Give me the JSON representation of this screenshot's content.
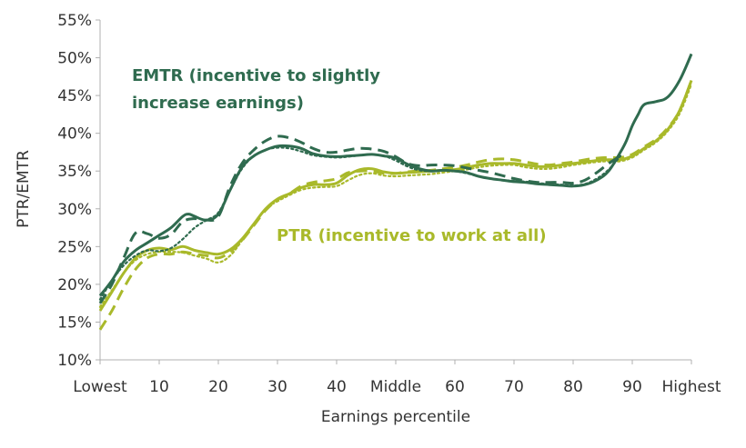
{
  "chart_data": {
    "type": "line",
    "title": "",
    "xlabel": "Earnings percentile",
    "ylabel": "PTR/EMTR",
    "xlim": [
      0,
      100
    ],
    "ylim": [
      10,
      55
    ],
    "x_ticks": [
      {
        "value": 0,
        "label": "Lowest"
      },
      {
        "value": 10,
        "label": "10"
      },
      {
        "value": 20,
        "label": "20"
      },
      {
        "value": 30,
        "label": "30"
      },
      {
        "value": 40,
        "label": "40"
      },
      {
        "value": 50,
        "label": "Middle"
      },
      {
        "value": 60,
        "label": "60"
      },
      {
        "value": 70,
        "label": "70"
      },
      {
        "value": 80,
        "label": "80"
      },
      {
        "value": 90,
        "label": "90"
      },
      {
        "value": 100,
        "label": "Highest"
      }
    ],
    "y_ticks": [
      {
        "value": 10,
        "label": "10%"
      },
      {
        "value": 15,
        "label": "15%"
      },
      {
        "value": 20,
        "label": "20%"
      },
      {
        "value": 25,
        "label": "25%"
      },
      {
        "value": 30,
        "label": "30%"
      },
      {
        "value": 35,
        "label": "35%"
      },
      {
        "value": 40,
        "label": "40%"
      },
      {
        "value": 45,
        "label": "45%"
      },
      {
        "value": 50,
        "label": "50%"
      },
      {
        "value": 55,
        "label": "55%"
      }
    ],
    "annotations": [
      {
        "text": "EMTR (incentive to slightly",
        "color": "#2f6b4f"
      },
      {
        "text": "increase earnings)",
        "color": "#2f6b4f"
      },
      {
        "text": "PTR (incentive to work at all)",
        "color": "#a9b92a"
      }
    ],
    "series": [
      {
        "name": "EMTR (solid)",
        "color": "#2f6b4f",
        "style": "solid",
        "x": [
          0,
          2,
          4,
          6,
          8,
          10,
          12,
          14,
          15,
          16,
          18,
          20,
          22,
          24,
          26,
          28,
          30,
          32,
          34,
          36,
          38,
          40,
          42,
          44,
          46,
          48,
          50,
          52,
          54,
          56,
          58,
          60,
          62,
          64,
          66,
          68,
          70,
          72,
          74,
          76,
          78,
          80,
          82,
          84,
          86,
          88,
          89,
          90,
          91,
          92,
          94,
          96,
          98,
          100
        ],
        "y": [
          18.5,
          20.5,
          23.0,
          24.5,
          25.5,
          26.5,
          27.5,
          29.0,
          29.3,
          29.0,
          28.5,
          29.3,
          32.5,
          35.5,
          37.0,
          37.8,
          38.3,
          38.3,
          38.0,
          37.3,
          37.0,
          36.9,
          37.0,
          37.1,
          37.2,
          37.0,
          36.7,
          35.9,
          35.3,
          35.0,
          35.1,
          35.0,
          34.8,
          34.3,
          34.0,
          33.8,
          33.6,
          33.5,
          33.3,
          33.2,
          33.1,
          33.0,
          33.2,
          33.8,
          35.0,
          37.5,
          39.0,
          41.0,
          42.5,
          43.8,
          44.2,
          44.8,
          47.0,
          50.5
        ]
      },
      {
        "name": "EMTR (dashed)",
        "color": "#2f6b4f",
        "style": "dashed",
        "x": [
          0,
          2,
          4,
          6,
          8,
          10,
          12,
          14,
          16,
          18,
          20,
          22,
          24,
          26,
          28,
          30,
          32,
          34,
          36,
          38,
          40,
          42,
          44,
          46,
          48,
          50,
          52,
          54,
          56,
          58,
          60,
          62,
          64,
          66,
          68,
          70,
          72,
          74,
          76,
          78,
          80,
          82,
          84,
          86,
          88
        ],
        "y": [
          17.5,
          20.0,
          23.5,
          26.8,
          26.7,
          26.1,
          26.6,
          28.3,
          28.7,
          28.5,
          29.0,
          33.0,
          36.0,
          37.8,
          39.0,
          39.6,
          39.4,
          38.8,
          38.0,
          37.5,
          37.5,
          37.8,
          38.0,
          37.9,
          37.6,
          36.9,
          36.0,
          35.7,
          35.8,
          35.8,
          35.7,
          35.4,
          35.1,
          34.8,
          34.4,
          34.0,
          33.7,
          33.5,
          33.5,
          33.5,
          33.4,
          33.8,
          34.8,
          36.0,
          37.0
        ]
      },
      {
        "name": "EMTR (dotted)",
        "color": "#2f6b4f",
        "style": "dotted",
        "x": [
          0,
          2,
          4,
          6,
          8,
          10,
          12,
          14,
          16,
          18,
          20,
          22,
          24,
          26,
          28,
          30,
          32,
          34,
          36,
          38,
          40,
          42,
          44,
          46,
          48,
          50,
          52,
          54,
          56,
          58,
          60,
          62,
          64,
          66,
          68,
          70,
          72,
          74,
          76,
          78,
          80,
          82,
          84,
          86,
          88
        ],
        "y": [
          18.0,
          20.5,
          22.5,
          23.8,
          24.5,
          24.4,
          24.8,
          26.0,
          27.5,
          28.5,
          29.5,
          32.5,
          35.3,
          37.0,
          37.8,
          38.1,
          38.0,
          37.6,
          37.1,
          36.9,
          36.8,
          36.9,
          37.1,
          37.2,
          37.0,
          36.4,
          35.6,
          35.1,
          35.0,
          35.1,
          35.0,
          34.7,
          34.3,
          34.0,
          33.8,
          33.7,
          33.6,
          33.4,
          33.3,
          33.2,
          33.1,
          33.3,
          34.0,
          35.2,
          37.0
        ]
      },
      {
        "name": "PTR (solid)",
        "color": "#a9b92a",
        "style": "solid",
        "x": [
          0,
          2,
          4,
          6,
          8,
          10,
          12,
          14,
          16,
          18,
          20,
          22,
          24,
          26,
          28,
          30,
          32,
          34,
          36,
          38,
          40,
          42,
          44,
          46,
          48,
          50,
          52,
          54,
          56,
          58,
          60,
          62,
          64,
          66,
          68,
          70,
          72,
          74,
          76,
          78,
          80,
          82,
          84,
          86,
          88,
          90,
          92,
          94,
          96,
          98,
          100
        ],
        "y": [
          16.5,
          19.0,
          21.5,
          23.5,
          24.5,
          24.8,
          24.6,
          25.0,
          24.5,
          24.2,
          24.0,
          24.6,
          26.0,
          28.0,
          30.0,
          31.3,
          32.0,
          32.8,
          33.2,
          33.2,
          33.4,
          34.5,
          35.2,
          35.3,
          34.9,
          34.7,
          34.8,
          34.9,
          35.0,
          35.1,
          35.2,
          35.5,
          35.8,
          36.0,
          36.0,
          36.0,
          35.8,
          35.6,
          35.6,
          35.8,
          36.0,
          36.2,
          36.4,
          36.5,
          36.5,
          37.0,
          38.0,
          39.0,
          40.5,
          43.0,
          47.0
        ]
      },
      {
        "name": "PTR (dashed)",
        "color": "#a9b92a",
        "style": "dashed",
        "x": [
          0,
          2,
          4,
          6,
          8,
          10,
          12,
          14,
          16,
          18,
          20,
          22,
          24,
          26,
          28,
          30,
          32,
          34,
          36,
          38,
          40,
          42,
          44,
          46,
          48,
          50,
          52,
          54,
          56,
          58,
          60,
          62,
          64,
          66,
          68,
          70,
          72,
          74,
          76,
          78,
          80,
          82,
          84,
          86,
          88,
          90,
          92,
          94,
          96,
          98,
          100
        ],
        "y": [
          14.0,
          16.5,
          19.5,
          22.0,
          23.5,
          24.0,
          24.0,
          24.3,
          24.0,
          23.8,
          23.5,
          24.3,
          25.8,
          27.8,
          29.8,
          31.2,
          32.0,
          33.0,
          33.5,
          33.7,
          34.0,
          34.8,
          35.0,
          35.0,
          34.7,
          34.7,
          34.9,
          35.0,
          35.1,
          35.3,
          35.5,
          35.8,
          36.2,
          36.5,
          36.6,
          36.5,
          36.2,
          35.9,
          35.8,
          36.0,
          36.2,
          36.5,
          36.7,
          36.8,
          36.8,
          37.2,
          38.2,
          39.2,
          40.7,
          43.0,
          47.0
        ]
      },
      {
        "name": "PTR (dotted)",
        "color": "#a9b92a",
        "style": "dotted",
        "x": [
          0,
          2,
          4,
          6,
          8,
          10,
          12,
          14,
          16,
          18,
          20,
          22,
          24,
          26,
          28,
          30,
          32,
          34,
          36,
          38,
          40,
          42,
          44,
          46,
          48,
          50,
          52,
          54,
          56,
          58,
          60,
          62,
          64,
          66,
          68,
          70,
          72,
          74,
          76,
          78,
          80,
          82,
          84,
          86,
          88,
          90,
          92,
          94,
          96,
          98,
          100
        ],
        "y": [
          17.0,
          19.2,
          21.5,
          23.2,
          24.0,
          24.3,
          24.3,
          24.2,
          23.8,
          23.4,
          22.9,
          23.8,
          25.8,
          28.0,
          30.0,
          31.0,
          31.8,
          32.5,
          32.8,
          32.9,
          33.0,
          33.8,
          34.5,
          34.7,
          34.4,
          34.3,
          34.4,
          34.5,
          34.6,
          34.8,
          35.0,
          35.2,
          35.5,
          35.7,
          35.8,
          35.8,
          35.5,
          35.3,
          35.3,
          35.5,
          35.8,
          36.0,
          36.2,
          36.3,
          36.3,
          36.8,
          37.8,
          38.8,
          40.3,
          42.6,
          46.5
        ]
      }
    ]
  }
}
